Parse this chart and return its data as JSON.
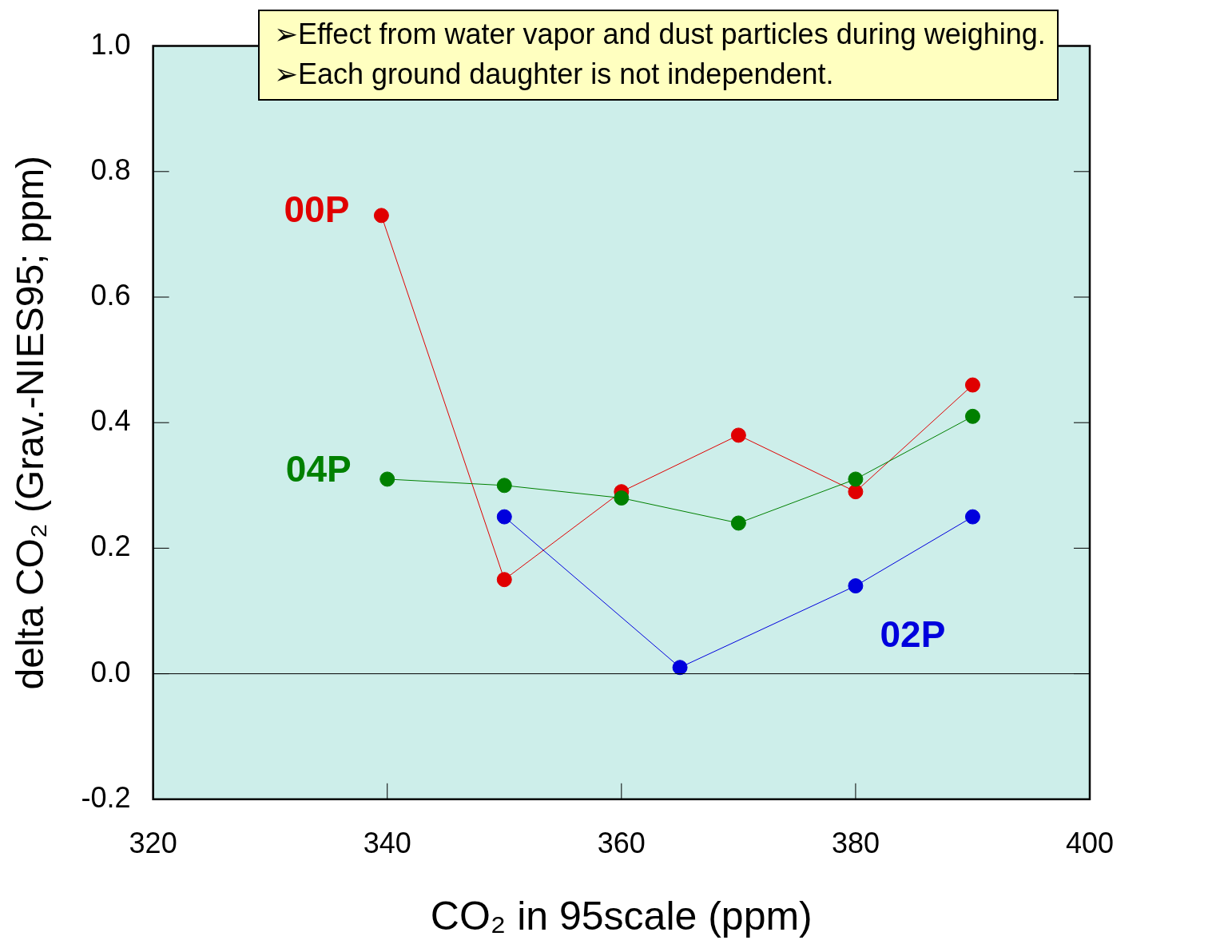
{
  "chart_data": {
    "type": "line",
    "xlabel": "CO₂ in 95scale (ppm)",
    "ylabel": "delta CO₂ (Grav.-NIES95; ppm)",
    "annotations": [
      "➢Effect from water vapor and dust particles during weighing.",
      "➢Each ground daughter is not independent."
    ],
    "xlim": [
      320,
      400
    ],
    "xticks": [
      320,
      340,
      360,
      380,
      400
    ],
    "ylim": [
      -0.2,
      1.0
    ],
    "yticks": [
      -0.2,
      {
        "value": 0,
        "label": "0.0"
      },
      0.2,
      0.4,
      0.6,
      0.8,
      {
        "value": 1,
        "label": "1.0"
      }
    ],
    "grid": false,
    "legend": false,
    "marker": "circle",
    "line_style": "solid",
    "ref_lines": [
      {
        "axis": "y",
        "value": 0,
        "color": "#000000"
      }
    ],
    "series": [
      {
        "name": "00P",
        "color": "#e00000",
        "x": [
          339.5,
          350,
          360,
          370,
          380,
          390
        ],
        "values": [
          0.73,
          0.15,
          0.29,
          0.38,
          0.29,
          0.46
        ]
      },
      {
        "name": "04P",
        "color": "#008000",
        "x": [
          340,
          350,
          360,
          370,
          380,
          390
        ],
        "values": [
          0.31,
          0.3,
          0.28,
          0.24,
          0.31,
          0.41
        ]
      },
      {
        "name": "02P",
        "color": "#0000dd",
        "x": [
          350,
          365,
          380,
          390
        ],
        "values": [
          0.25,
          0.01,
          0.14,
          0.25
        ]
      }
    ]
  }
}
